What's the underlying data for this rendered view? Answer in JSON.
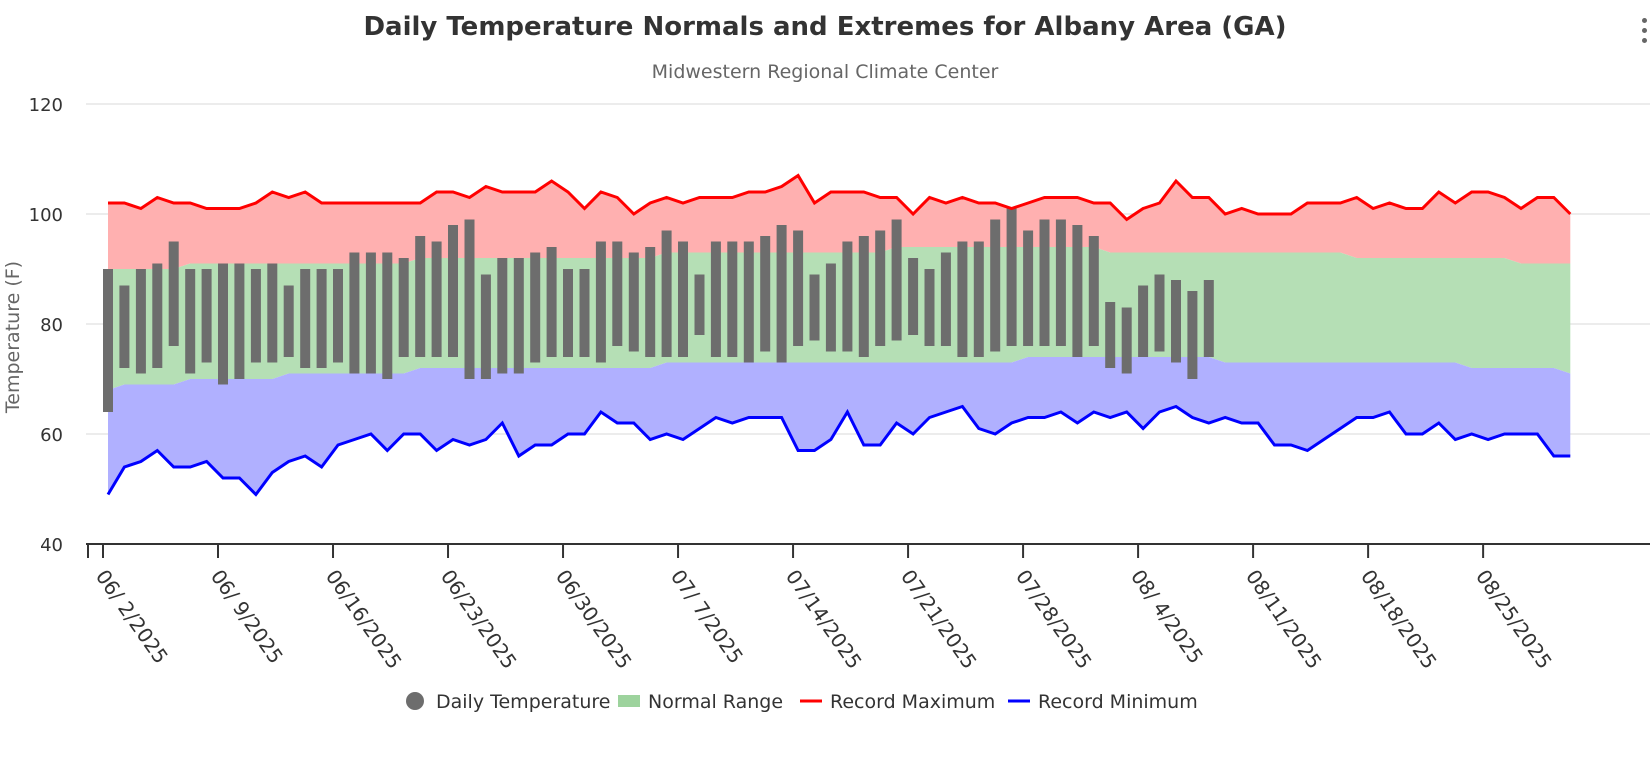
{
  "chart_data": {
    "type": "area",
    "title": "Daily Temperature Normals and Extremes for Albany Area (GA)",
    "subtitle": "Midwestern Regional Climate Center",
    "ylabel": "Temperature (F)",
    "xlabel": "",
    "ylim": [
      40,
      120
    ],
    "yticks": [
      40,
      60,
      80,
      100,
      120
    ],
    "grid": true,
    "legend_position": "bottom",
    "start_date": "2025-06-02",
    "x_tick_labels": [
      "06/ 2/2025",
      "06/ 9/2025",
      "06/16/2025",
      "06/23/2025",
      "06/30/2025",
      "07/ 7/2025",
      "07/14/2025",
      "07/21/2025",
      "07/28/2025",
      "08/ 4/2025",
      "08/11/2025",
      "08/18/2025",
      "08/25/2025"
    ],
    "legend": [
      {
        "key": "daily",
        "label": "Daily Temperature",
        "color": "#6d6d6d",
        "symbol": "circle"
      },
      {
        "key": "normal",
        "label": "Normal Range",
        "color": "#9dd39d",
        "symbol": "area"
      },
      {
        "key": "recmax",
        "label": "Record Maximum",
        "color": "#ff0000",
        "symbol": "line"
      },
      {
        "key": "recmin",
        "label": "Record Minimum",
        "color": "#0000ff",
        "symbol": "line"
      }
    ],
    "colors": {
      "record_max_line": "#ff0000",
      "record_max_fill": "#ffb0b0",
      "normal_fill": "#b5dfb5",
      "record_min_line": "#0000ff",
      "record_min_fill": "#b0b0ff",
      "daily_bar": "#6d6d6d"
    },
    "record_max": [
      102,
      102,
      101,
      103,
      102,
      102,
      101,
      101,
      101,
      102,
      104,
      103,
      104,
      102,
      102,
      102,
      102,
      102,
      102,
      102,
      104,
      104,
      103,
      105,
      104,
      104,
      104,
      106,
      104,
      101,
      104,
      103,
      100,
      102,
      103,
      102,
      103,
      103,
      103,
      104,
      104,
      105,
      107,
      102,
      104,
      104,
      104,
      103,
      103,
      100,
      103,
      102,
      103,
      102,
      102,
      101,
      102,
      103,
      103,
      103,
      102,
      102,
      99,
      101,
      102,
      106,
      103,
      103,
      100,
      101,
      100,
      100,
      100,
      102,
      102,
      102,
      103,
      101,
      102,
      101,
      101,
      104,
      102,
      104,
      104,
      103,
      101,
      103,
      103,
      100
    ],
    "normal_high": [
      90,
      90,
      90,
      90,
      90,
      91,
      91,
      91,
      91,
      91,
      91,
      91,
      91,
      91,
      91,
      91,
      91,
      91,
      91,
      92,
      92,
      92,
      92,
      92,
      92,
      92,
      92,
      92,
      92,
      92,
      92,
      92,
      92,
      92,
      93,
      93,
      93,
      93,
      93,
      93,
      93,
      93,
      93,
      93,
      93,
      93,
      93,
      93,
      94,
      94,
      94,
      94,
      94,
      94,
      94,
      94,
      94,
      94,
      94,
      94,
      94,
      93,
      93,
      93,
      93,
      93,
      93,
      93,
      93,
      93,
      93,
      93,
      93,
      93,
      93,
      93,
      92,
      92,
      92,
      92,
      92,
      92,
      92,
      92,
      92,
      92,
      91,
      91,
      91,
      91
    ],
    "normal_low": [
      68,
      69,
      69,
      69,
      69,
      70,
      70,
      70,
      70,
      70,
      70,
      71,
      71,
      71,
      71,
      71,
      71,
      71,
      71,
      72,
      72,
      72,
      72,
      72,
      72,
      72,
      72,
      72,
      72,
      72,
      72,
      72,
      72,
      72,
      73,
      73,
      73,
      73,
      73,
      73,
      73,
      73,
      73,
      73,
      73,
      73,
      73,
      73,
      73,
      73,
      73,
      73,
      73,
      73,
      73,
      73,
      74,
      74,
      74,
      74,
      74,
      74,
      74,
      74,
      74,
      74,
      74,
      74,
      73,
      73,
      73,
      73,
      73,
      73,
      73,
      73,
      73,
      73,
      73,
      73,
      73,
      73,
      73,
      72,
      72,
      72,
      72,
      72,
      72,
      71
    ],
    "record_min": [
      49,
      54,
      55,
      57,
      54,
      54,
      55,
      52,
      52,
      49,
      53,
      55,
      56,
      54,
      58,
      59,
      60,
      57,
      60,
      60,
      57,
      59,
      58,
      59,
      62,
      56,
      58,
      58,
      60,
      60,
      64,
      62,
      62,
      59,
      60,
      59,
      61,
      63,
      62,
      63,
      63,
      63,
      57,
      57,
      59,
      64,
      58,
      58,
      62,
      60,
      63,
      64,
      65,
      61,
      60,
      62,
      63,
      63,
      64,
      62,
      64,
      63,
      64,
      61,
      64,
      65,
      63,
      62,
      63,
      62,
      62,
      58,
      58,
      57,
      59,
      61,
      63,
      63,
      64,
      60,
      60,
      62,
      59,
      60,
      59,
      60,
      60,
      60,
      56,
      56
    ],
    "daily_high": [
      90,
      87,
      90,
      91,
      95,
      90,
      90,
      91,
      91,
      90,
      91,
      87,
      90,
      90,
      90,
      93,
      93,
      93,
      92,
      96,
      95,
      98,
      99,
      89,
      92,
      92,
      93,
      94,
      90,
      90,
      95,
      95,
      93,
      94,
      97,
      95,
      89,
      95,
      95,
      95,
      96,
      98,
      97,
      89,
      91,
      95,
      96,
      97,
      99,
      92,
      90,
      93,
      95,
      95,
      99,
      101,
      97,
      99,
      99,
      98,
      96,
      84,
      83,
      87,
      89,
      88,
      86,
      88
    ],
    "daily_low": [
      64,
      72,
      71,
      72,
      76,
      71,
      73,
      69,
      70,
      73,
      73,
      74,
      72,
      72,
      73,
      71,
      71,
      70,
      74,
      74,
      74,
      74,
      70,
      70,
      71,
      71,
      73,
      74,
      74,
      74,
      73,
      76,
      75,
      74,
      74,
      74,
      78,
      74,
      74,
      73,
      75,
      73,
      76,
      77,
      75,
      75,
      74,
      76,
      77,
      78,
      76,
      76,
      74,
      74,
      75,
      76,
      76,
      76,
      76,
      74,
      76,
      72,
      71,
      74,
      75,
      73,
      70,
      74
    ]
  }
}
